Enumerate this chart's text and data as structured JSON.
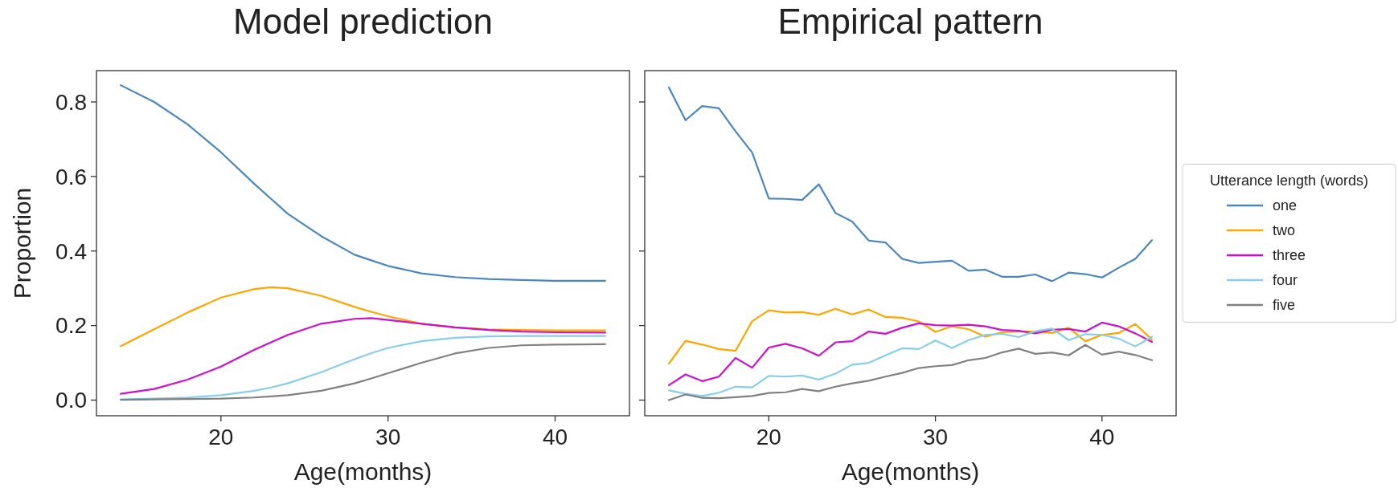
{
  "chart_data": [
    {
      "type": "line",
      "title": "Model prediction",
      "xlabel": "Age(months)",
      "ylabel": "Proportion",
      "x": [
        14,
        16,
        18,
        20,
        22,
        23,
        24,
        26,
        28,
        29,
        30,
        32,
        34,
        36,
        38,
        40,
        43
      ],
      "series": [
        {
          "color": "#4a86c0",
          "values": [
            0.845,
            0.8,
            0.74,
            0.665,
            0.58,
            0.54,
            0.5,
            0.44,
            0.39,
            0.375,
            0.36,
            0.34,
            0.33,
            0.325,
            0.322,
            0.32,
            0.32
          ]
        },
        {
          "color": "#ffa500",
          "values": [
            0.145,
            0.19,
            0.235,
            0.275,
            0.298,
            0.303,
            0.3,
            0.28,
            0.25,
            0.237,
            0.225,
            0.205,
            0.195,
            0.19,
            0.188,
            0.187,
            0.187
          ]
        },
        {
          "color": "#cc11cc",
          "values": [
            0.017,
            0.03,
            0.055,
            0.09,
            0.135,
            0.155,
            0.175,
            0.205,
            0.218,
            0.22,
            0.215,
            0.205,
            0.195,
            0.188,
            0.184,
            0.182,
            0.181
          ]
        },
        {
          "color": "#87ceeb",
          "values": [
            0.002,
            0.004,
            0.007,
            0.013,
            0.025,
            0.034,
            0.045,
            0.075,
            0.11,
            0.126,
            0.14,
            0.158,
            0.167,
            0.171,
            0.172,
            0.172,
            0.172
          ]
        },
        {
          "color": "#808080",
          "values": [
            0.001,
            0.002,
            0.003,
            0.004,
            0.007,
            0.01,
            0.013,
            0.025,
            0.045,
            0.058,
            0.072,
            0.1,
            0.125,
            0.14,
            0.147,
            0.149,
            0.15
          ]
        }
      ],
      "xlim": [
        12.55,
        44.45
      ],
      "xticks": [
        20,
        30,
        40
      ],
      "ylim": [
        -0.042,
        0.884
      ],
      "yticks": [
        {
          "value": 0,
          "label": "0.0"
        },
        {
          "value": 0.2,
          "label": "0.2"
        },
        {
          "value": 0.4,
          "label": "0.4"
        },
        {
          "value": 0.6,
          "label": "0.6"
        },
        {
          "value": 0.8,
          "label": "0.8"
        }
      ]
    },
    {
      "type": "line",
      "title": "Empirical pattern",
      "xlabel": "Age(months)",
      "legend_title": "Utterance length (words)",
      "legend": "right",
      "tick_labels": "x",
      "x": [
        14,
        15,
        16,
        17,
        18,
        19,
        20,
        21,
        22,
        23,
        24,
        25,
        26,
        27,
        28,
        29,
        30,
        31,
        32,
        33,
        34,
        35,
        36,
        37,
        38,
        39,
        40,
        41,
        42,
        43
      ],
      "series": [
        {
          "name": "one",
          "color": "#4a86c0",
          "values": [
            0.839,
            0.751,
            0.789,
            0.783,
            0.721,
            0.664,
            0.541,
            0.54,
            0.537,
            0.579,
            0.502,
            0.479,
            0.428,
            0.423,
            0.379,
            0.368,
            0.371,
            0.374,
            0.347,
            0.35,
            0.331,
            0.331,
            0.337,
            0.319,
            0.342,
            0.338,
            0.329,
            0.355,
            0.379,
            0.429
          ]
        },
        {
          "name": "two",
          "color": "#ffa500",
          "values": [
            0.098,
            0.159,
            0.149,
            0.137,
            0.132,
            0.212,
            0.241,
            0.235,
            0.236,
            0.229,
            0.245,
            0.23,
            0.243,
            0.223,
            0.221,
            0.211,
            0.183,
            0.198,
            0.19,
            0.17,
            0.182,
            0.184,
            0.184,
            0.18,
            0.194,
            0.158,
            0.175,
            0.18,
            0.204,
            0.162
          ]
        },
        {
          "name": "three",
          "color": "#cc11cc",
          "values": [
            0.04,
            0.069,
            0.051,
            0.063,
            0.113,
            0.087,
            0.141,
            0.151,
            0.139,
            0.119,
            0.155,
            0.158,
            0.184,
            0.178,
            0.194,
            0.206,
            0.201,
            0.2,
            0.202,
            0.198,
            0.188,
            0.186,
            0.179,
            0.189,
            0.191,
            0.184,
            0.208,
            0.198,
            0.179,
            0.156
          ]
        },
        {
          "name": "four",
          "color": "#87ceeb",
          "values": [
            0.026,
            0.017,
            0.011,
            0.02,
            0.036,
            0.034,
            0.065,
            0.063,
            0.066,
            0.055,
            0.071,
            0.095,
            0.1,
            0.12,
            0.139,
            0.137,
            0.16,
            0.14,
            0.161,
            0.175,
            0.178,
            0.169,
            0.185,
            0.192,
            0.161,
            0.177,
            0.175,
            0.165,
            0.144,
            0.17
          ]
        },
        {
          "name": "five",
          "color": "#808080",
          "values": [
            0.0,
            0.015,
            0.006,
            0.005,
            0.008,
            0.011,
            0.019,
            0.021,
            0.03,
            0.024,
            0.036,
            0.045,
            0.052,
            0.063,
            0.073,
            0.086,
            0.091,
            0.094,
            0.107,
            0.113,
            0.128,
            0.138,
            0.124,
            0.128,
            0.12,
            0.148,
            0.122,
            0.13,
            0.121,
            0.107
          ]
        }
      ],
      "xlim": [
        12.55,
        44.45
      ],
      "xticks": [
        20,
        30,
        40
      ],
      "ylim": [
        -0.042,
        0.884
      ],
      "yticks": [
        {
          "value": 0,
          "label": null
        },
        {
          "value": 0.2,
          "label": null
        },
        {
          "value": 0.4,
          "label": null
        },
        {
          "value": 0.6,
          "label": null
        },
        {
          "value": 0.8,
          "label": null
        }
      ]
    }
  ]
}
